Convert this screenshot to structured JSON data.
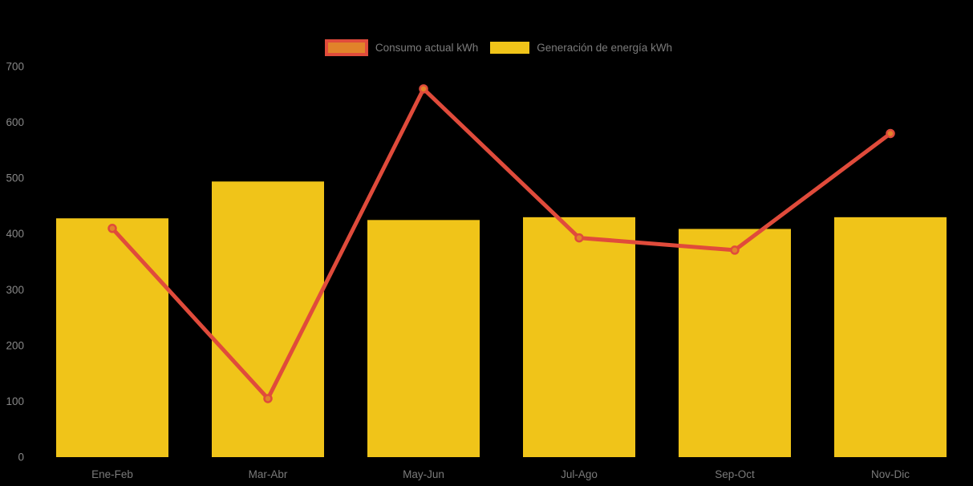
{
  "chart_data": {
    "type": "combo",
    "title": "",
    "xlabel": "",
    "ylabel": "",
    "categories": [
      "Ene-Feb",
      "Mar-Abr",
      "May-Jun",
      "Jul-Ago",
      "Sep-Oct",
      "Nov-Dic"
    ],
    "series": [
      {
        "name": "Consumo actual kWh",
        "type": "line",
        "values": [
          410,
          105,
          660,
          393,
          371,
          580
        ],
        "color": "#E04B3B",
        "marker_fill": "#E1832A"
      },
      {
        "name": "Generación de energía kWh",
        "type": "bar",
        "values": [
          428,
          494,
          425,
          430,
          409,
          430
        ],
        "color": "#F0C419"
      }
    ],
    "ylim": [
      0,
      700
    ],
    "yticks": [
      0,
      100,
      200,
      300,
      400,
      500,
      600,
      700
    ],
    "legend_position": "top-center",
    "grid": false,
    "background_color": "#000000",
    "axis_text_color": "#7a7a7a"
  }
}
